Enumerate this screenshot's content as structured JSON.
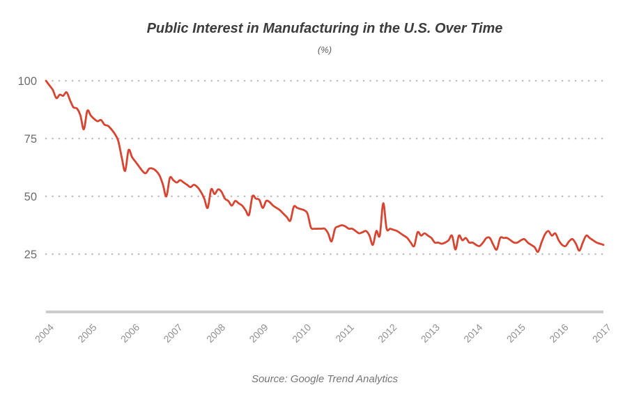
{
  "header": {
    "title": "Public Interest in Manufacturing in the U.S. Over Time",
    "subtitle": "(%)"
  },
  "footer": {
    "source": "Source: Google Trend Analytics"
  },
  "chart_data": {
    "type": "line",
    "title": "Public Interest in Manufacturing in the U.S. Over Time",
    "unit_label": "(%)",
    "x_tick_labels": [
      "2004",
      "2005",
      "2006",
      "2007",
      "2008",
      "2009",
      "2010",
      "2011",
      "2012",
      "2013",
      "2014",
      "2015",
      "2016",
      "2017"
    ],
    "y_tick_labels": [
      "25",
      "50",
      "75",
      "100"
    ],
    "y_ticks": [
      25,
      50,
      75,
      100
    ],
    "ylim": [
      0,
      100
    ],
    "grid": "dotted-horizontal",
    "legend": "none",
    "line_color": "#d8442f",
    "grid_dot_color": "#bdbdbd",
    "axis_color": "#cccccc",
    "series": [
      {
        "name": "public-interest-pct-monthly",
        "note": "monthly values, Jan 2004 through Jul 2017",
        "values": [
          100,
          98,
          96,
          92.5,
          94,
          93.5,
          95,
          91.5,
          88.5,
          88,
          85,
          79,
          87,
          85,
          83.5,
          82.5,
          83,
          81,
          80.5,
          79,
          77,
          74,
          67,
          61,
          70,
          67,
          65,
          63,
          61,
          60,
          62,
          62,
          61,
          59,
          55,
          50,
          58,
          57,
          56,
          57,
          56,
          55,
          54,
          55,
          54,
          52,
          49,
          45,
          53,
          51,
          53,
          52,
          49,
          48,
          46,
          48,
          47,
          46,
          44,
          42,
          50,
          49,
          48.5,
          45,
          48,
          47.5,
          46,
          45,
          44,
          42.5,
          41,
          39.5,
          45.5,
          45,
          44.5,
          44,
          42.5,
          36.5,
          36,
          36,
          36,
          36,
          34,
          30.5,
          36,
          37,
          37.5,
          37,
          36,
          36,
          35,
          34,
          34.5,
          35,
          33,
          29,
          35,
          33,
          47,
          36,
          36,
          35.5,
          35,
          34,
          33,
          32,
          30,
          28.5,
          34.5,
          33,
          34,
          33,
          32,
          30,
          30,
          29.5,
          30,
          31,
          33,
          27,
          33,
          31,
          32,
          30,
          30,
          29,
          28.5,
          30,
          32,
          32,
          29,
          27,
          32,
          32,
          32,
          31,
          30,
          30,
          31,
          31.5,
          30,
          29,
          28,
          26,
          30,
          33.5,
          35,
          33,
          34,
          31,
          29,
          28.5,
          30.5,
          31.5,
          29.5,
          26.5,
          30,
          33,
          32,
          31,
          30,
          29.5,
          29
        ]
      }
    ]
  }
}
